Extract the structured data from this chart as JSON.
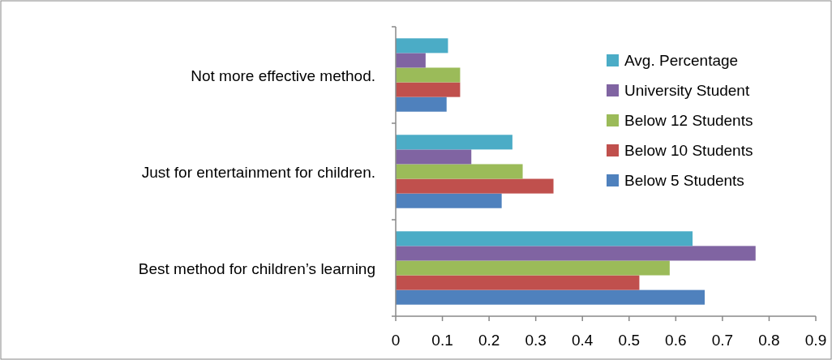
{
  "chart_data": {
    "type": "bar",
    "orientation": "horizontal",
    "categories": [
      "Not more effective method.",
      "Just for entertainment for children.",
      "Best method for children’s learning"
    ],
    "series": [
      {
        "name": "Below 5 Students",
        "color": "#4f81bd",
        "values": [
          0.109,
          0.227,
          0.662
        ]
      },
      {
        "name": "Below 10 Students",
        "color": "#c0504d",
        "values": [
          0.138,
          0.338,
          0.522
        ]
      },
      {
        "name": "Below 12 Students",
        "color": "#9bbb59",
        "values": [
          0.138,
          0.272,
          0.587
        ]
      },
      {
        "name": "University Student",
        "color": "#8064a2",
        "values": [
          0.064,
          0.162,
          0.771
        ]
      },
      {
        "name": "Avg. Percentage",
        "color": "#4bacc6",
        "values": [
          0.112,
          0.25,
          0.636
        ]
      }
    ],
    "xlim": [
      0,
      0.9
    ],
    "xticks": [
      0,
      0.1,
      0.2,
      0.3,
      0.4,
      0.5,
      0.6,
      0.7,
      0.8,
      0.9
    ],
    "grid": false,
    "legend": "right"
  }
}
